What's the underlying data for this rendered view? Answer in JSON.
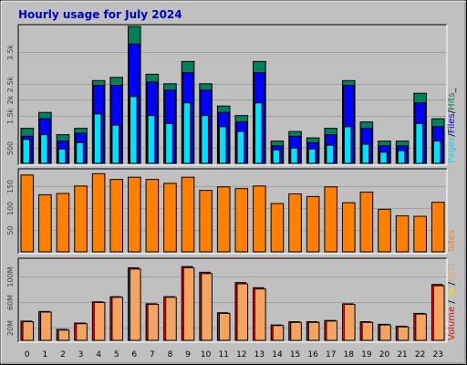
{
  "title": "Hourly usage for July 2024",
  "colors": {
    "background": "#c0c0c0",
    "plot_bg": "#c0c0c0",
    "grid": "#a0a0a0",
    "title": "#0000c0",
    "hits": "#00805a",
    "files": "#0000ff",
    "pages": "#00e0ff",
    "sites": "#ff8000",
    "volume": "#ff0000",
    "volume_in": "#ffd700",
    "volume_out": "#f4a460"
  },
  "chart_data": [
    {
      "type": "bar",
      "name": "hits-files-pages",
      "categories": [
        "0",
        "1",
        "2",
        "3",
        "4",
        "5",
        "6",
        "7",
        "8",
        "9",
        "10",
        "11",
        "12",
        "13",
        "14",
        "15",
        "16",
        "17",
        "18",
        "19",
        "20",
        "21",
        "22",
        "23"
      ],
      "ylim": [
        0,
        4300
      ],
      "yticks": [
        500,
        1500,
        2000,
        2500,
        3500
      ],
      "ytick_labels": [
        "500",
        "1.5k",
        "2k",
        "2.5k",
        "3.5k"
      ],
      "legend_labels": [
        "Pages",
        "Files",
        "Hits"
      ],
      "series": [
        {
          "name": "Hits",
          "values": [
            1100,
            1600,
            900,
            1100,
            2600,
            2700,
            4300,
            2800,
            2500,
            3200,
            2500,
            1800,
            1500,
            3200,
            700,
            1000,
            800,
            1100,
            2600,
            1300,
            700,
            700,
            2200,
            1400
          ]
        },
        {
          "name": "Files",
          "values": [
            850,
            1400,
            700,
            950,
            2450,
            2450,
            3750,
            2550,
            2300,
            2850,
            2300,
            1600,
            1300,
            2850,
            550,
            850,
            650,
            900,
            2450,
            1100,
            550,
            550,
            1900,
            1150
          ]
        },
        {
          "name": "Pages",
          "values": [
            750,
            900,
            450,
            650,
            1550,
            1200,
            2100,
            1500,
            1250,
            1900,
            1500,
            1150,
            1000,
            1900,
            420,
            480,
            450,
            570,
            1150,
            600,
            350,
            400,
            1250,
            700
          ]
        }
      ]
    },
    {
      "type": "bar",
      "name": "sites",
      "categories": [
        "0",
        "1",
        "2",
        "3",
        "4",
        "5",
        "6",
        "7",
        "8",
        "9",
        "10",
        "11",
        "12",
        "13",
        "14",
        "15",
        "16",
        "17",
        "18",
        "19",
        "20",
        "21",
        "22",
        "23"
      ],
      "ylim": [
        0,
        185
      ],
      "yticks": [
        50,
        100,
        150
      ],
      "ytick_labels": [
        "50",
        "100",
        "150"
      ],
      "legend_labels": [
        "Sites"
      ],
      "series": [
        {
          "name": "Sites",
          "values": [
            175,
            130,
            133,
            150,
            178,
            165,
            170,
            165,
            156,
            170,
            140,
            148,
            144,
            150,
            110,
            132,
            126,
            148,
            112,
            136,
            97,
            82,
            81,
            113
          ]
        }
      ]
    },
    {
      "type": "bar",
      "name": "volume",
      "categories": [
        "0",
        "1",
        "2",
        "3",
        "4",
        "5",
        "6",
        "7",
        "8",
        "9",
        "10",
        "11",
        "12",
        "13",
        "14",
        "15",
        "16",
        "17",
        "18",
        "19",
        "20",
        "21",
        "22",
        "23"
      ],
      "ylim": [
        0,
        125
      ],
      "yticks": [
        20,
        60,
        100
      ],
      "ytick_labels": [
        "20M",
        "60M",
        "100M"
      ],
      "legend_labels": [
        "Volume",
        "/",
        "IN",
        "/",
        "OUT"
      ],
      "series": [
        {
          "name": "Volume",
          "values": [
            30,
            45,
            17,
            27,
            60,
            68,
            113,
            57,
            68,
            115,
            106,
            43,
            90,
            82,
            24,
            29,
            29,
            31,
            57,
            29,
            25,
            22,
            42,
            87
          ]
        },
        {
          "name": "OUT",
          "values": [
            29,
            44,
            16,
            26,
            59,
            67,
            111,
            56,
            67,
            113,
            104,
            42,
            88,
            80,
            23,
            28,
            28,
            30,
            56,
            28,
            24,
            21,
            41,
            85
          ]
        }
      ]
    }
  ]
}
